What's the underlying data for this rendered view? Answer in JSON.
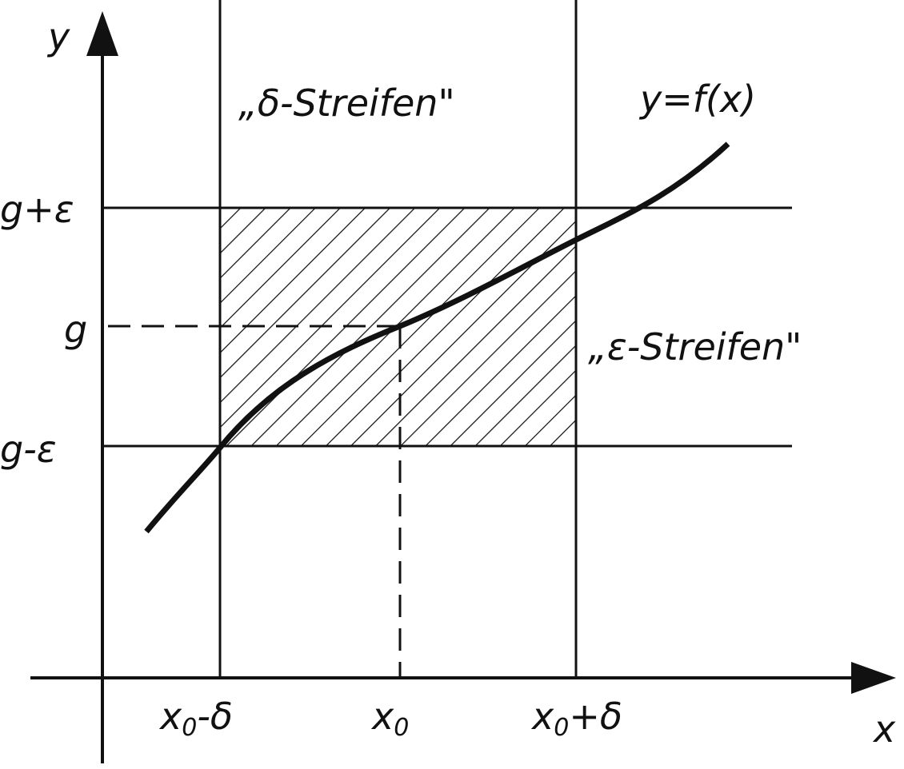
{
  "axes": {
    "x_label": "x",
    "y_label": "y"
  },
  "y_ticks": {
    "upper": "g+ε",
    "center": "g",
    "lower": "g-ε"
  },
  "x_ticks": {
    "left": {
      "base": "x",
      "sub": "0",
      "suffix": "-δ"
    },
    "center": {
      "base": "x",
      "sub": "0",
      "suffix": ""
    },
    "right": {
      "base": "x",
      "sub": "0",
      "suffix": "+δ"
    }
  },
  "annotations": {
    "delta_strip": "„δ-Streifen\"",
    "epsilon_strip": "„ε-Streifen\"",
    "function": "y=f(x)"
  },
  "colors": {
    "ink": "#111111",
    "background": "#ffffff"
  }
}
